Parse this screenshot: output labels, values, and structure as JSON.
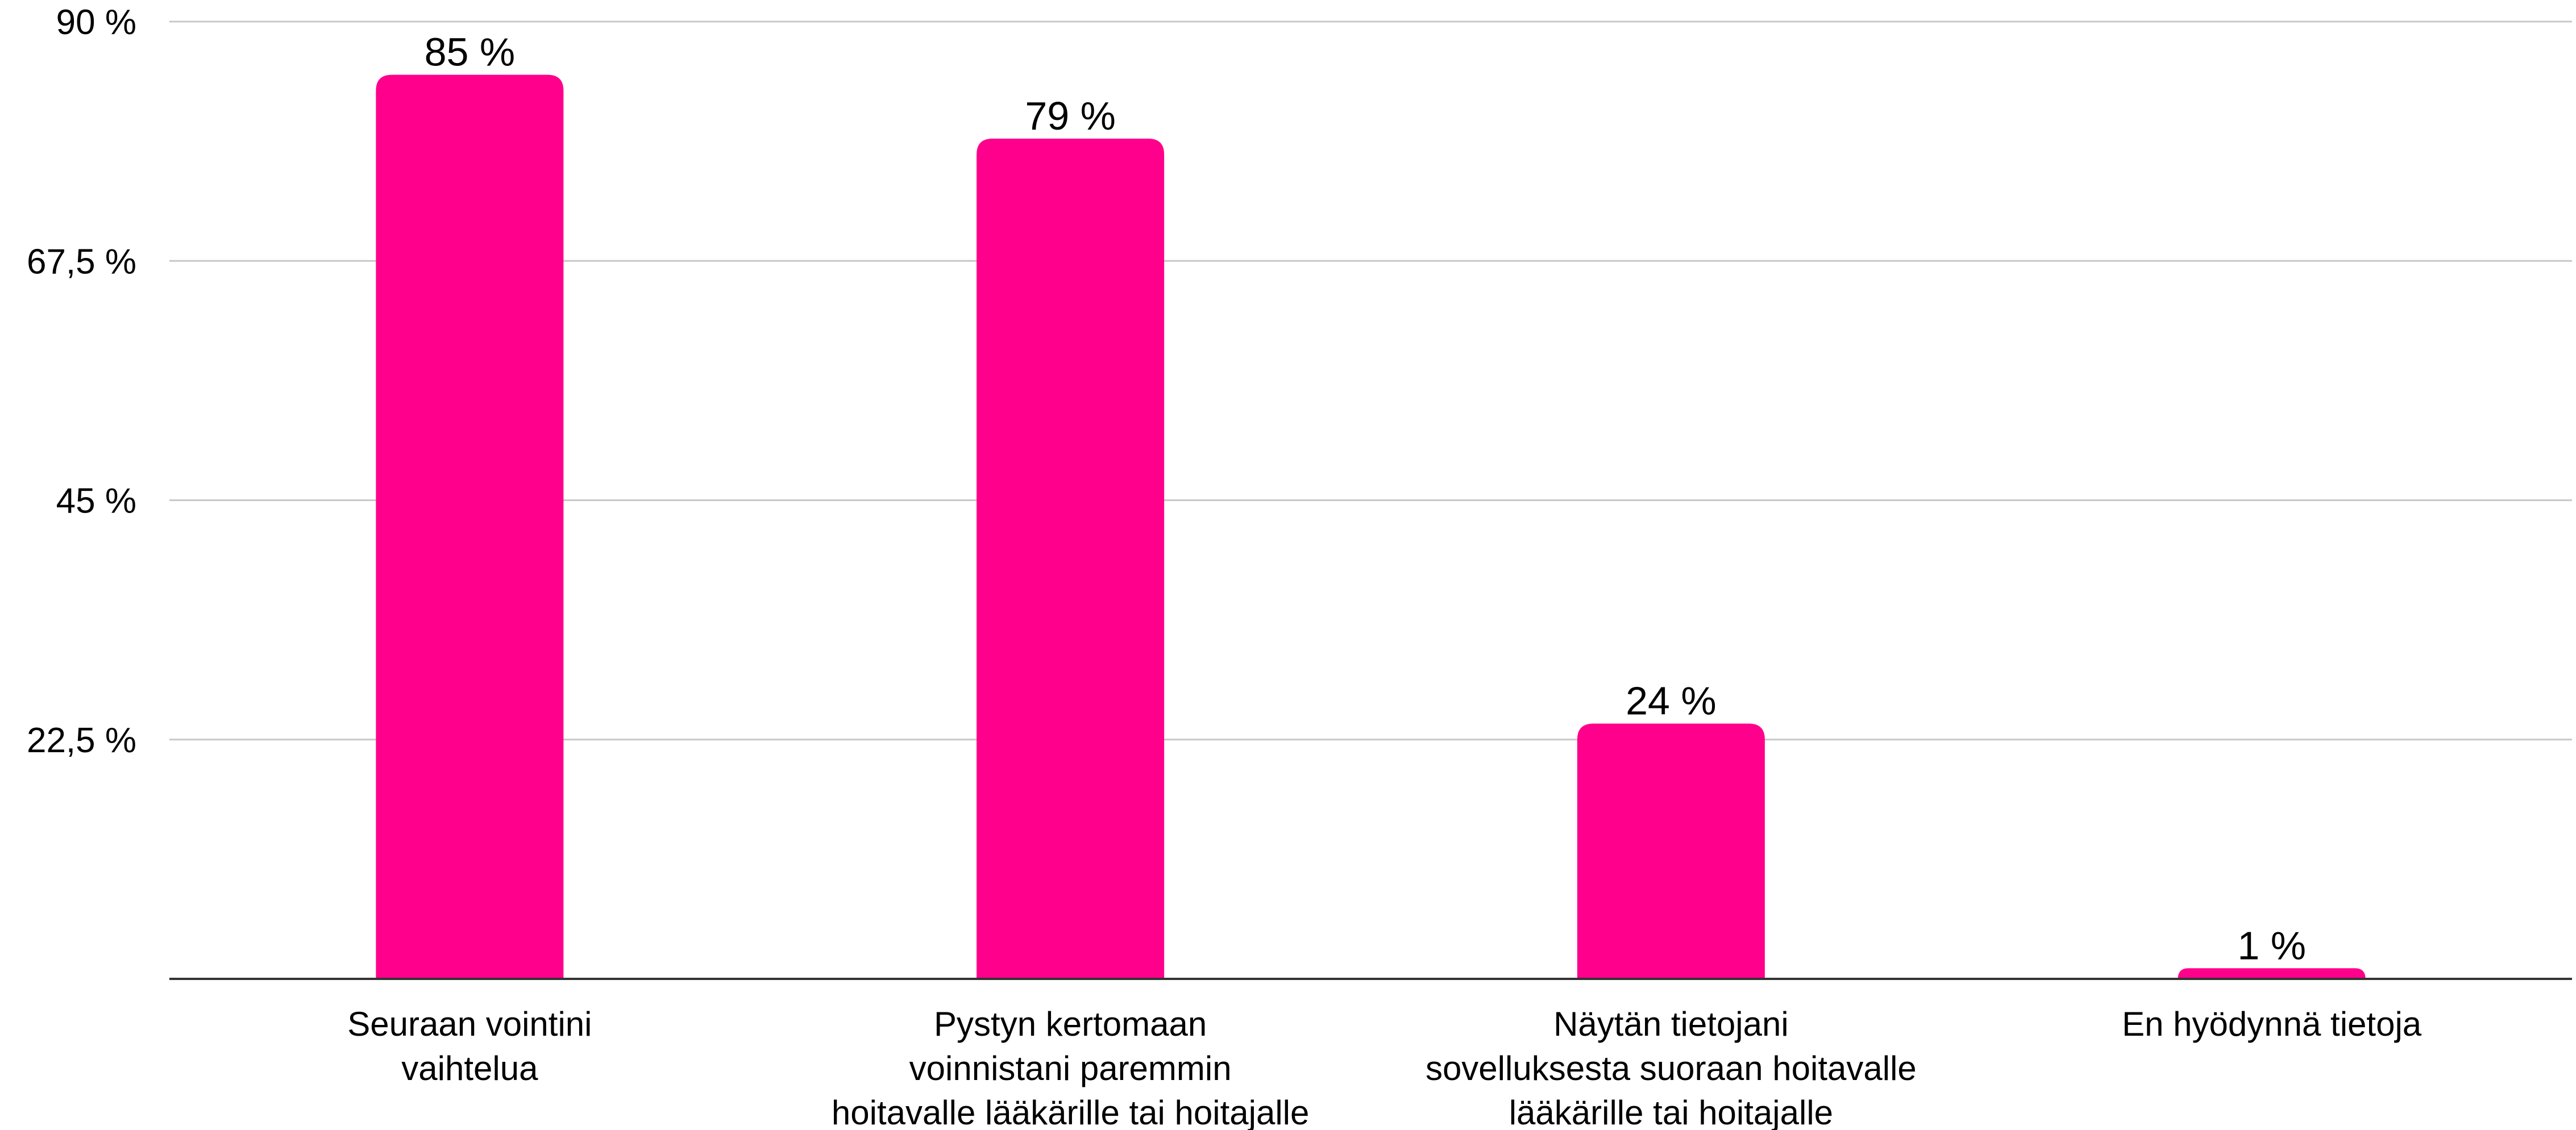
{
  "chart_data": {
    "type": "bar",
    "categories": [
      [
        "Seuraan vointini",
        "vaihtelua"
      ],
      [
        "Pystyn kertomaan",
        "voinnistani paremmin",
        "hoitavalle lääkärille tai hoitajalle"
      ],
      [
        "Näytän tietojani",
        "sovelluksesta suoraan hoitavalle",
        "lääkärille tai hoitajalle"
      ],
      [
        "En hyödynnä tietoja"
      ]
    ],
    "values": [
      85,
      79,
      24,
      1
    ],
    "data_labels": [
      "85 %",
      "79 %",
      "24 %",
      "1 %"
    ],
    "y_ticks": [
      {
        "value": 90,
        "label": "90 %"
      },
      {
        "value": 67.5,
        "label": "67,5 %"
      },
      {
        "value": 45,
        "label": "45 %"
      },
      {
        "value": 22.5,
        "label": "22,5 %"
      }
    ],
    "ylim": [
      0,
      90
    ],
    "title": "",
    "xlabel": "",
    "ylabel": "",
    "grid": true,
    "legend": "none",
    "bar_color": "#ff008c"
  }
}
